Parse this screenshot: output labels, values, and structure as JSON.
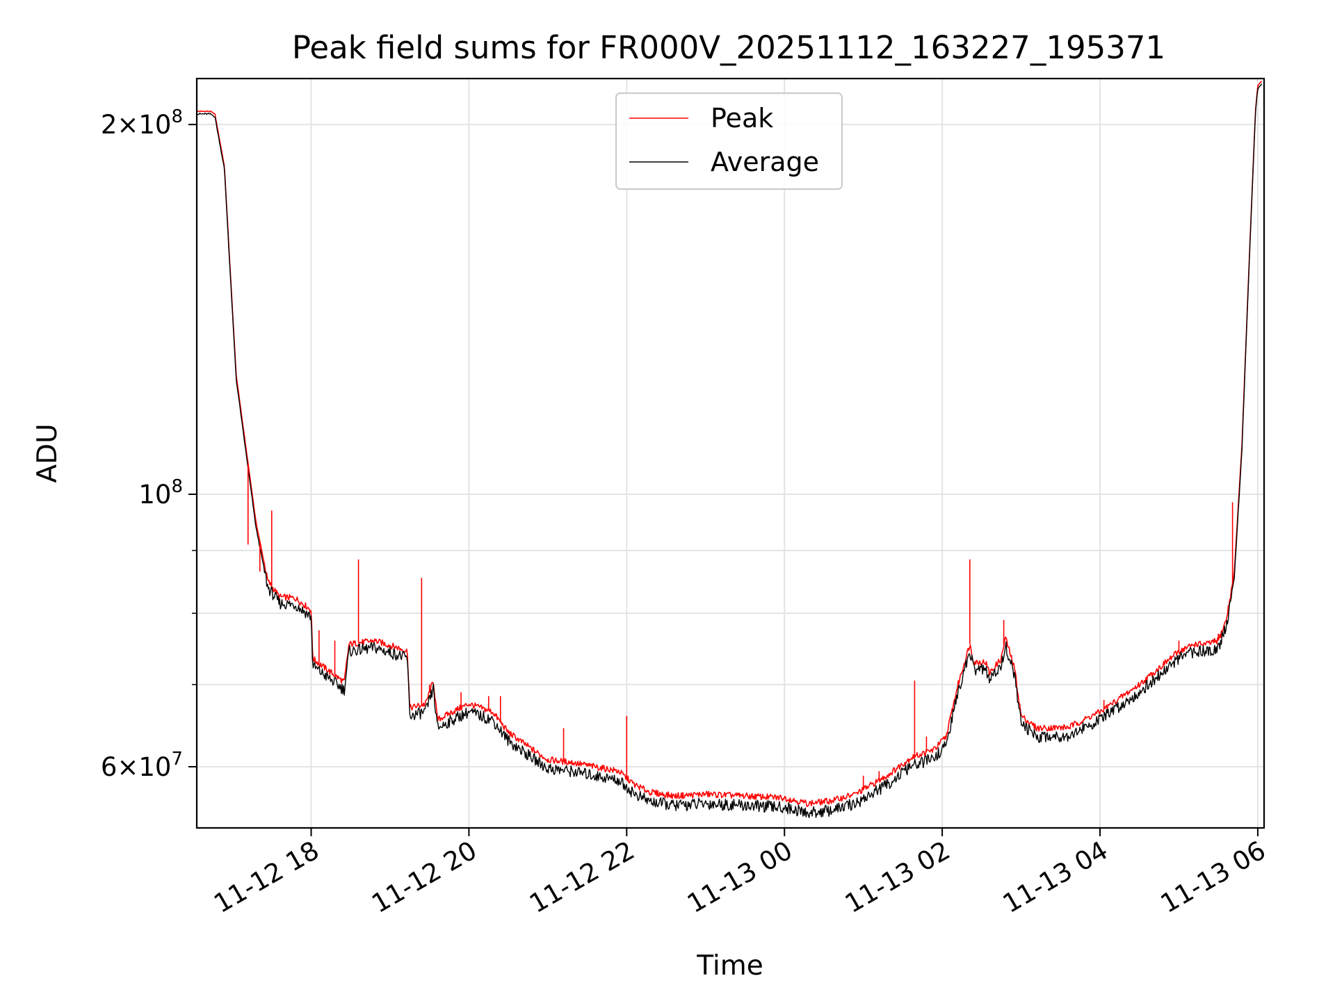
{
  "chart_data": {
    "type": "line",
    "title": "Peak field sums for FR000V_20251112_163227_195371",
    "xlabel": "Time",
    "ylabel": "ADU",
    "yscale": "log",
    "ylim": [
      53500000,
      218000000
    ],
    "xlim_hours": [
      16.55,
      30.08
    ],
    "grid": true,
    "legend_position": "top-center",
    "x_ticks": [
      {
        "hour": 18,
        "label": "11-12 18"
      },
      {
        "hour": 20,
        "label": "11-12 20"
      },
      {
        "hour": 22,
        "label": "11-12 22"
      },
      {
        "hour": 24,
        "label": "11-13 00"
      },
      {
        "hour": 26,
        "label": "11-13 02"
      },
      {
        "hour": 28,
        "label": "11-13 04"
      },
      {
        "hour": 30,
        "label": "11-13 06"
      }
    ],
    "y_major_ticks": [
      {
        "value": 60000000,
        "mantissa": "6",
        "exp": "7"
      },
      {
        "value": 100000000,
        "mantissa": "",
        "exp": "8"
      },
      {
        "value": 200000000,
        "mantissa": "2",
        "exp": "8"
      }
    ],
    "y_minor_ticks": [
      70000000,
      80000000,
      90000000
    ],
    "series": [
      {
        "name": "Peak",
        "color": "#ff0000",
        "points": [
          [
            16.55,
            205000000
          ],
          [
            16.72,
            205000000
          ],
          [
            16.78,
            204000000
          ],
          [
            16.9,
            185000000
          ],
          [
            16.98,
            150000000
          ],
          [
            17.05,
            125000000
          ],
          [
            17.15,
            112000000
          ],
          [
            17.3,
            95000000
          ],
          [
            17.45,
            85000000
          ],
          [
            17.6,
            82500000
          ],
          [
            17.8,
            82300000
          ],
          [
            18.0,
            80500000
          ],
          [
            18.02,
            73500000
          ],
          [
            18.2,
            72000000
          ],
          [
            18.42,
            70300000
          ],
          [
            18.48,
            75500000
          ],
          [
            18.8,
            76000000
          ],
          [
            19.1,
            75000000
          ],
          [
            19.22,
            74500000
          ],
          [
            19.25,
            67000000
          ],
          [
            19.45,
            67500000
          ],
          [
            19.55,
            70500000
          ],
          [
            19.6,
            65500000
          ],
          [
            19.85,
            66800000
          ],
          [
            20.0,
            67500000
          ],
          [
            20.3,
            66500000
          ],
          [
            20.5,
            64000000
          ],
          [
            20.8,
            62000000
          ],
          [
            21.0,
            60800000
          ],
          [
            21.3,
            60500000
          ],
          [
            21.6,
            60000000
          ],
          [
            21.9,
            59500000
          ],
          [
            22.1,
            58000000
          ],
          [
            22.3,
            57200000
          ],
          [
            22.6,
            56800000
          ],
          [
            23.0,
            57000000
          ],
          [
            23.5,
            56800000
          ],
          [
            24.0,
            56600000
          ],
          [
            24.3,
            56000000
          ],
          [
            24.6,
            56300000
          ],
          [
            24.9,
            57000000
          ],
          [
            25.3,
            59000000
          ],
          [
            25.6,
            61000000
          ],
          [
            25.9,
            62000000
          ],
          [
            26.05,
            63500000
          ],
          [
            26.2,
            70000000
          ],
          [
            26.35,
            75500000
          ],
          [
            26.4,
            73000000
          ],
          [
            26.55,
            73000000
          ],
          [
            26.6,
            71500000
          ],
          [
            26.75,
            73500000
          ],
          [
            26.8,
            76500000
          ],
          [
            26.92,
            72000000
          ],
          [
            27.0,
            66000000
          ],
          [
            27.2,
            64500000
          ],
          [
            27.6,
            64600000
          ],
          [
            28.0,
            66500000
          ],
          [
            28.5,
            70000000
          ],
          [
            29.0,
            74500000
          ],
          [
            29.2,
            75500000
          ],
          [
            29.35,
            75500000
          ],
          [
            29.5,
            76000000
          ],
          [
            29.6,
            79000000
          ],
          [
            29.7,
            86000000
          ],
          [
            29.8,
            110000000
          ],
          [
            29.9,
            160000000
          ],
          [
            29.97,
            205000000
          ],
          [
            30.0,
            215000000
          ],
          [
            30.05,
            217000000
          ]
        ]
      },
      {
        "name": "Average",
        "color": "#000000",
        "points": [
          [
            16.55,
            204000000
          ],
          [
            16.72,
            204000000
          ],
          [
            16.78,
            203000000
          ],
          [
            16.9,
            184000000
          ],
          [
            16.98,
            149000000
          ],
          [
            17.05,
            124000000
          ],
          [
            17.15,
            111000000
          ],
          [
            17.3,
            94000000
          ],
          [
            17.45,
            84000000
          ],
          [
            17.6,
            81500000
          ],
          [
            17.8,
            81300000
          ],
          [
            18.0,
            79500000
          ],
          [
            18.02,
            72500000
          ],
          [
            18.2,
            71000000
          ],
          [
            18.42,
            69300000
          ],
          [
            18.48,
            74500000
          ],
          [
            18.8,
            75000000
          ],
          [
            19.1,
            74000000
          ],
          [
            19.22,
            73500000
          ],
          [
            19.25,
            66000000
          ],
          [
            19.45,
            66500000
          ],
          [
            19.55,
            69500000
          ],
          [
            19.6,
            64500000
          ],
          [
            19.85,
            65800000
          ],
          [
            20.0,
            66500000
          ],
          [
            20.3,
            65500000
          ],
          [
            20.5,
            63000000
          ],
          [
            20.8,
            61000000
          ],
          [
            21.0,
            59800000
          ],
          [
            21.3,
            59500000
          ],
          [
            21.6,
            59000000
          ],
          [
            21.9,
            58500000
          ],
          [
            22.1,
            57000000
          ],
          [
            22.3,
            56200000
          ],
          [
            22.6,
            55800000
          ],
          [
            23.0,
            56000000
          ],
          [
            23.5,
            55800000
          ],
          [
            24.0,
            55600000
          ],
          [
            24.3,
            55000000
          ],
          [
            24.6,
            55300000
          ],
          [
            24.9,
            56000000
          ],
          [
            25.3,
            58000000
          ],
          [
            25.6,
            60000000
          ],
          [
            25.9,
            61000000
          ],
          [
            26.05,
            62500000
          ],
          [
            26.2,
            69000000
          ],
          [
            26.35,
            74500000
          ],
          [
            26.4,
            72000000
          ],
          [
            26.55,
            72000000
          ],
          [
            26.6,
            70500000
          ],
          [
            26.75,
            72500000
          ],
          [
            26.8,
            75500000
          ],
          [
            26.92,
            71000000
          ],
          [
            27.0,
            65000000
          ],
          [
            27.2,
            63500000
          ],
          [
            27.6,
            63600000
          ],
          [
            28.0,
            65500000
          ],
          [
            28.5,
            69000000
          ],
          [
            29.0,
            73500000
          ],
          [
            29.2,
            74500000
          ],
          [
            29.35,
            74500000
          ],
          [
            29.5,
            75000000
          ],
          [
            29.6,
            78000000
          ],
          [
            29.7,
            85000000
          ],
          [
            29.8,
            109000000
          ],
          [
            29.9,
            159000000
          ],
          [
            29.97,
            204000000
          ],
          [
            30.0,
            214000000
          ],
          [
            30.05,
            216000000
          ]
        ]
      }
    ],
    "peak_spikes": [
      [
        17.2,
        91000000
      ],
      [
        17.35,
        86500000
      ],
      [
        17.42,
        87000000
      ],
      [
        17.5,
        97000000
      ],
      [
        18.1,
        77500000
      ],
      [
        18.3,
        76000000
      ],
      [
        18.6,
        88500000
      ],
      [
        19.4,
        85500000
      ],
      [
        19.5,
        70000000
      ],
      [
        19.9,
        69000000
      ],
      [
        20.25,
        68500000
      ],
      [
        20.4,
        68500000
      ],
      [
        21.2,
        64500000
      ],
      [
        22.0,
        66000000
      ],
      [
        25.0,
        59000000
      ],
      [
        25.2,
        59500000
      ],
      [
        25.65,
        70500000
      ],
      [
        25.8,
        63500000
      ],
      [
        26.35,
        88500000
      ],
      [
        26.78,
        79000000
      ],
      [
        28.05,
        68000000
      ],
      [
        29.0,
        76000000
      ],
      [
        29.5,
        77000000
      ],
      [
        29.68,
        98500000
      ]
    ]
  },
  "legend": {
    "peak_label": "Peak",
    "average_label": "Average",
    "peak_color": "#ff0000",
    "average_color": "#000000"
  }
}
